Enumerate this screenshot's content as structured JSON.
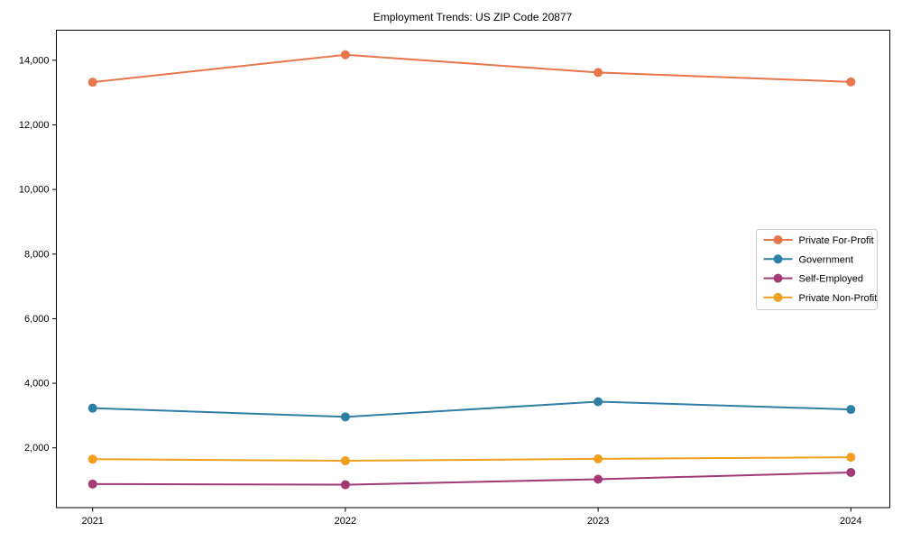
{
  "chart_data": {
    "type": "line",
    "title": "Employment Trends: US ZIP Code 20877",
    "x": [
      2021,
      2022,
      2023,
      2024
    ],
    "x_tick_labels": [
      "2021",
      "2022",
      "2023",
      "2024"
    ],
    "series": [
      {
        "name": "Private For-Profit",
        "color": "#e8764b",
        "values": [
          13320,
          14170,
          13620,
          13330
        ]
      },
      {
        "name": "Government",
        "color": "#2e7fa3",
        "values": [
          3230,
          2960,
          3430,
          3190
        ]
      },
      {
        "name": "Self-Employed",
        "color": "#a23a74",
        "values": [
          880,
          860,
          1030,
          1240
        ]
      },
      {
        "name": "Private Non-Profit",
        "color": "#f0a01e",
        "values": [
          1650,
          1600,
          1660,
          1710
        ]
      }
    ],
    "yticks": [
      2000,
      4000,
      6000,
      8000,
      10000,
      12000,
      14000
    ],
    "ytick_labels": [
      "2,000",
      "4,000",
      "6,000",
      "8,000",
      "10,000",
      "12,000",
      "14,000"
    ],
    "ylim": [
      150,
      14930
    ],
    "xlabel": "",
    "ylabel": "",
    "grid": false,
    "legend": {
      "position": "center-right",
      "border_color": "#cccccc",
      "background": "rgba(255,255,255,0.85)",
      "labels": [
        "Private For-Profit",
        "Government",
        "Self-Employed",
        "Private Non-Profit"
      ]
    },
    "axis_color": "#000000",
    "background_color": "#ffffff"
  }
}
